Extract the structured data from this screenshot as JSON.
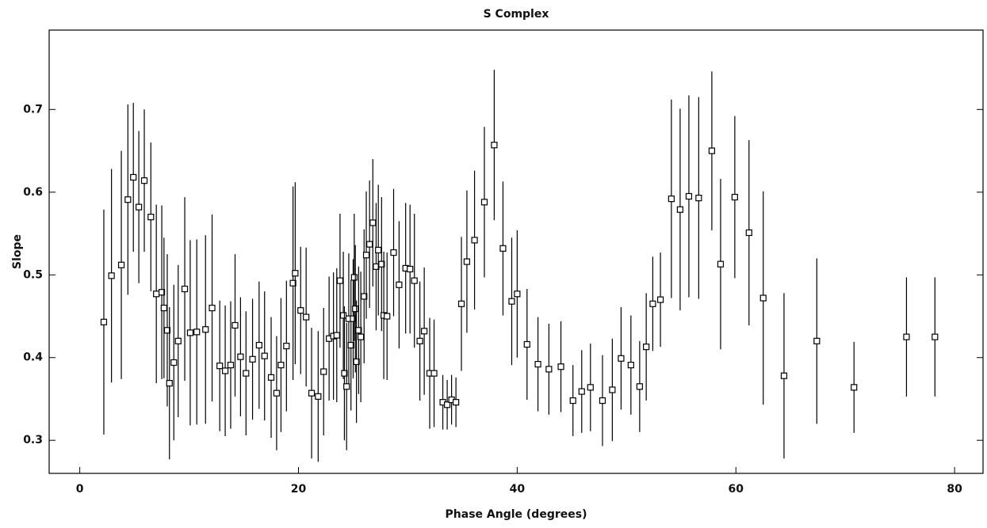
{
  "chart_data": {
    "type": "scatter",
    "title": "S Complex",
    "x_label": "Phase Angle (degrees)",
    "y_label": "Slope",
    "x": [
      2.2,
      2.9,
      3.8,
      4.4,
      4.9,
      5.4,
      5.9,
      6.5,
      7.0,
      7.5,
      7.7,
      8.0,
      8.2,
      8.6,
      9.0,
      9.6,
      10.1,
      10.7,
      11.5,
      12.1,
      12.8,
      13.3,
      13.8,
      14.2,
      14.7,
      15.2,
      15.8,
      16.4,
      16.9,
      17.5,
      18.0,
      18.4,
      18.9,
      19.5,
      19.7,
      20.2,
      20.7,
      21.2,
      21.8,
      22.3,
      22.8,
      23.2,
      23.5,
      23.8,
      24.1,
      24.2,
      24.4,
      24.6,
      24.8,
      25.0,
      25.1,
      25.2,
      25.3,
      25.5,
      25.7,
      26.0,
      26.2,
      26.5,
      26.8,
      27.1,
      27.3,
      27.6,
      27.8,
      28.1,
      28.7,
      29.2,
      29.8,
      30.2,
      30.6,
      31.1,
      31.5,
      32.0,
      32.4,
      33.2,
      33.6,
      34.0,
      34.4,
      34.9,
      35.4,
      36.1,
      37.0,
      37.9,
      38.7,
      39.5,
      40.0,
      40.9,
      41.9,
      42.9,
      44.0,
      45.1,
      45.9,
      46.7,
      47.8,
      48.7,
      49.5,
      50.4,
      51.2,
      51.8,
      52.4,
      53.1,
      54.1,
      54.9,
      55.7,
      56.6,
      57.8,
      58.6,
      59.9,
      61.2,
      62.5,
      64.4,
      67.4,
      70.8,
      75.6,
      78.2
    ],
    "values": [
      0.443,
      0.499,
      0.512,
      0.591,
      0.618,
      0.582,
      0.614,
      0.57,
      0.477,
      0.479,
      0.46,
      0.433,
      0.369,
      0.394,
      0.42,
      0.483,
      0.43,
      0.431,
      0.434,
      0.46,
      0.39,
      0.384,
      0.391,
      0.439,
      0.401,
      0.381,
      0.398,
      0.415,
      0.402,
      0.376,
      0.357,
      0.391,
      0.414,
      0.49,
      0.502,
      0.457,
      0.449,
      0.357,
      0.353,
      0.383,
      0.423,
      0.426,
      0.427,
      0.493,
      0.451,
      0.381,
      0.365,
      0.447,
      0.415,
      0.447,
      0.497,
      0.459,
      0.395,
      0.433,
      0.425,
      0.474,
      0.524,
      0.537,
      0.563,
      0.51,
      0.53,
      0.513,
      0.451,
      0.45,
      0.527,
      0.488,
      0.508,
      0.507,
      0.493,
      0.42,
      0.432,
      0.381,
      0.381,
      0.346,
      0.343,
      0.349,
      0.346,
      0.465,
      0.516,
      0.542,
      0.588,
      0.657,
      0.532,
      0.468,
      0.477,
      0.416,
      0.392,
      0.386,
      0.389,
      0.348,
      0.359,
      0.364,
      0.348,
      0.361,
      0.399,
      0.391,
      0.365,
      0.413,
      0.465,
      0.47,
      0.592,
      0.579,
      0.595,
      0.593,
      0.65,
      0.513,
      0.594,
      0.551,
      0.472,
      0.378,
      0.42,
      0.364,
      0.425,
      0.425
    ],
    "errors": [
      0.136,
      0.129,
      0.138,
      0.115,
      0.09,
      0.092,
      0.086,
      0.09,
      0.108,
      0.105,
      0.085,
      0.092,
      0.092,
      0.094,
      0.092,
      0.111,
      0.112,
      0.112,
      0.114,
      0.113,
      0.079,
      0.079,
      0.077,
      0.086,
      0.072,
      0.075,
      0.073,
      0.077,
      0.078,
      0.073,
      0.069,
      0.081,
      0.079,
      0.117,
      0.11,
      0.077,
      0.084,
      0.079,
      0.079,
      0.077,
      0.075,
      0.077,
      0.081,
      0.081,
      0.077,
      0.081,
      0.077,
      0.079,
      0.079,
      0.072,
      0.077,
      0.077,
      0.074,
      0.077,
      0.079,
      0.081,
      0.077,
      0.077,
      0.077,
      0.077,
      0.079,
      0.081,
      0.077,
      0.077,
      0.077,
      0.077,
      0.079,
      0.078,
      0.081,
      0.072,
      0.077,
      0.067,
      0.065,
      0.033,
      0.03,
      0.03,
      0.03,
      0.081,
      0.086,
      0.084,
      0.091,
      0.091,
      0.081,
      0.077,
      0.077,
      0.067,
      0.057,
      0.055,
      0.055,
      0.043,
      0.05,
      0.053,
      0.055,
      0.062,
      0.062,
      0.06,
      0.055,
      0.065,
      0.057,
      0.057,
      0.12,
      0.122,
      0.122,
      0.122,
      0.096,
      0.103,
      0.098,
      0.112,
      0.129,
      0.1,
      0.1,
      0.055,
      0.072,
      0.072
    ],
    "color": "#000000",
    "xlim": [
      -2.8,
      82.6
    ],
    "ylim": [
      0.26,
      0.796
    ],
    "xticks": [
      0,
      20,
      40,
      60,
      80
    ],
    "yticks": [
      0.3,
      0.4,
      0.5,
      0.6,
      0.7
    ]
  }
}
